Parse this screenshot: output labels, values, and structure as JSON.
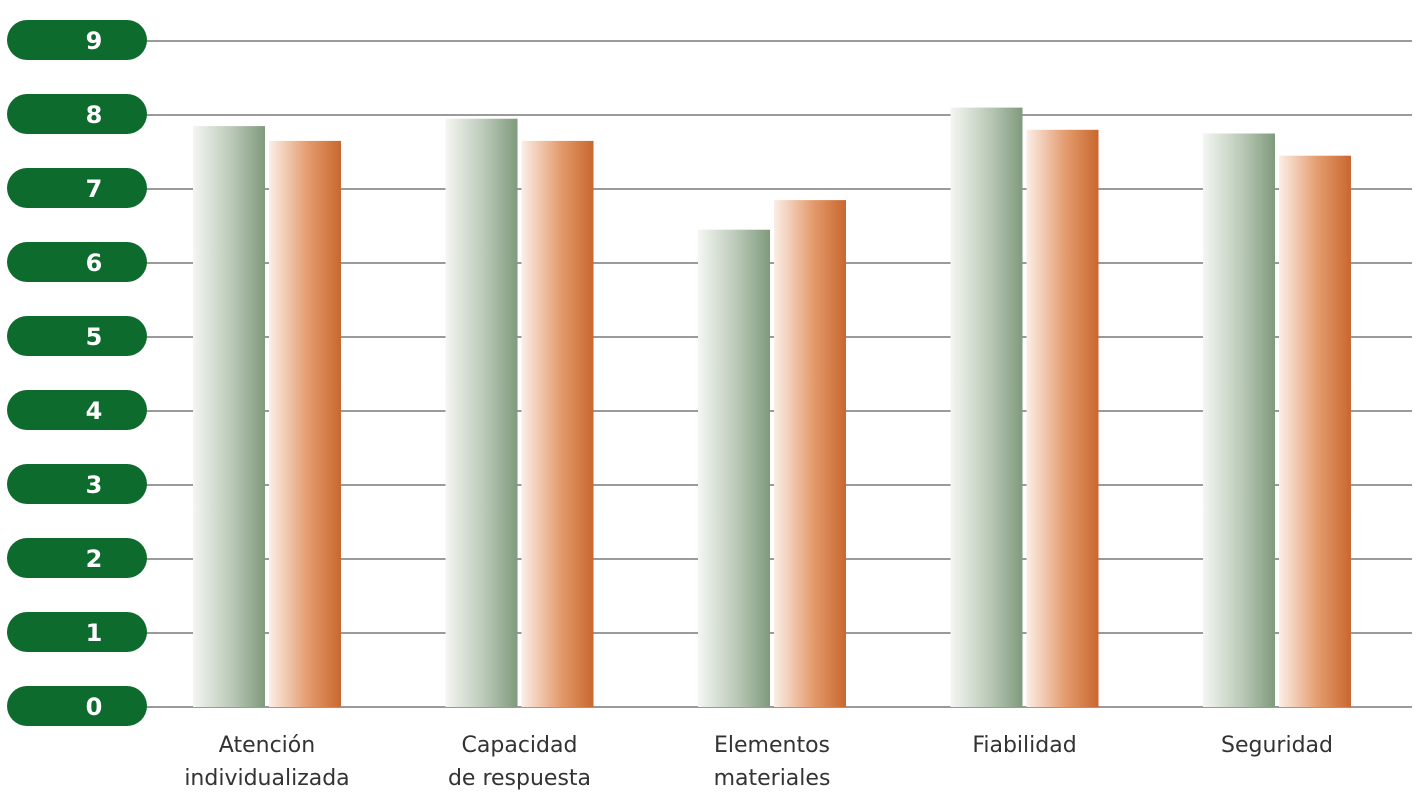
{
  "chart_data": {
    "type": "bar",
    "title": "",
    "xlabel": "",
    "ylabel": "",
    "ylim": [
      0,
      9
    ],
    "yticks": [
      "0",
      "1",
      "2",
      "3",
      "4",
      "5",
      "6",
      "7",
      "8",
      "9"
    ],
    "grid": true,
    "legend": "none",
    "categories": [
      [
        "Atención",
        "individualizada"
      ],
      [
        "Capacidad",
        "de respuesta"
      ],
      [
        "Elementos",
        "materiales"
      ],
      [
        "Fiabilidad"
      ],
      [
        "Seguridad"
      ]
    ],
    "series": [
      {
        "values": [
          7.85,
          7.95,
          6.45,
          8.1,
          7.75
        ],
        "color": "#7f9a7c"
      },
      {
        "values": [
          7.65,
          7.65,
          6.85,
          7.8,
          7.45
        ],
        "color": "#c9672e"
      }
    ],
    "colors": {
      "tick_pill": "#0e6b2e",
      "grid_line": "#9a9a9a",
      "label_text": "#333333"
    }
  }
}
